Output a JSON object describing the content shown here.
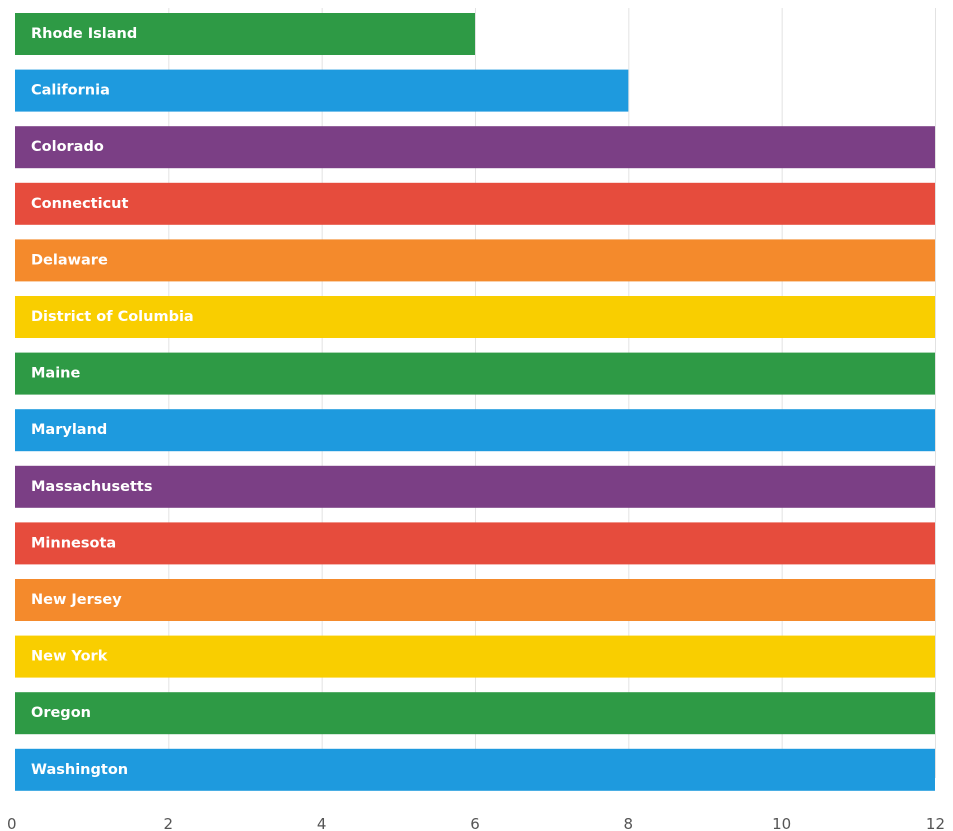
{
  "chart_data": {
    "type": "bar",
    "orientation": "horizontal",
    "categories": [
      "Rhode Island",
      "California",
      "Colorado",
      "Connecticut",
      "Delaware",
      "District of Columbia",
      "Maine",
      "Maryland",
      "Massachusetts",
      "Minnesota",
      "New Jersey",
      "New York",
      "Oregon",
      "Washington"
    ],
    "values": [
      6,
      8,
      12,
      12,
      12,
      12,
      12,
      12,
      12,
      12,
      12,
      12,
      12,
      12
    ],
    "colors": [
      "#2e9a45",
      "#1e9ade",
      "#7b3f85",
      "#e64c3d",
      "#f48a2c",
      "#f9ce00",
      "#2e9a45",
      "#1e9ade",
      "#7b3f85",
      "#e64c3d",
      "#f48a2c",
      "#f9ce00",
      "#2e9a45",
      "#1e9ade"
    ],
    "xlim": [
      0,
      12
    ],
    "xticks": [
      0,
      2,
      4,
      6,
      8,
      10,
      12
    ],
    "xtick_labels": [
      "0",
      "2",
      "4",
      "6",
      "8",
      "10",
      "12"
    ],
    "title": "",
    "xlabel": "",
    "ylabel": "",
    "grid": true,
    "legend": false
  }
}
